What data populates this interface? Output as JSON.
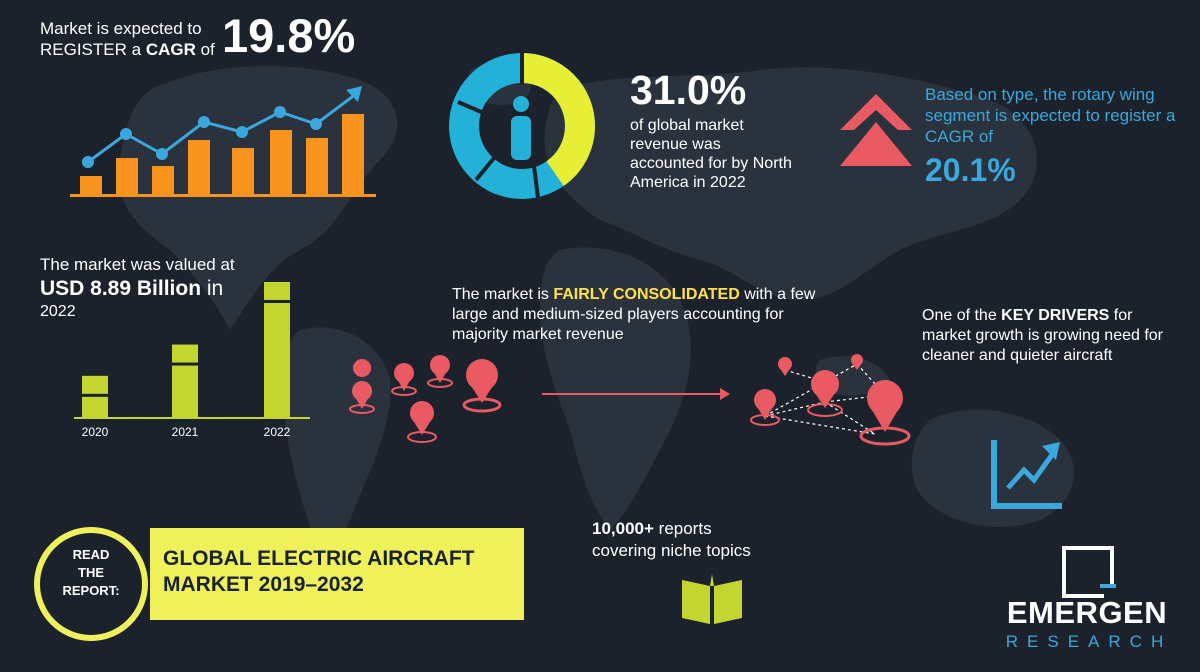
{
  "cagr": {
    "lead_line1": "Market is expected to",
    "lead_line2_prefix": "REGISTER a ",
    "lead_line2_bold": "CAGR",
    "lead_line2_suffix": " of",
    "value": "19.8%"
  },
  "market_share": {
    "value": "31.0%",
    "description": "of global market revenue was accounted for by North America in 2022",
    "donut_share_fraction": 0.31
  },
  "rotary_wing": {
    "description": "Based on type, the rotary wing segment is expected to register a CAGR of",
    "value": "20.1%"
  },
  "valuation": {
    "lead": "The market was valued at",
    "amount_bold": "USD 8.89 Billion",
    "amount_suffix": " in",
    "year": "2022"
  },
  "chart_data": {
    "type": "bar",
    "categories": [
      "2020",
      "2021",
      "2022"
    ],
    "values": [
      0.31,
      0.54,
      1.0
    ],
    "xlabel": "",
    "ylabel": "",
    "grid": false
  },
  "consolidation": {
    "prefix": "The market is ",
    "highlight": "FAIRLY CONSOLIDATED",
    "suffix": " with a few large and medium-sized players accounting for majority market revenue"
  },
  "drivers": {
    "prefix": "One of the ",
    "highlight": "KEY DRIVERS",
    "suffix": " for market growth is growing need for cleaner and quieter aircraft"
  },
  "reports": {
    "count": "10,000+",
    "line1_suffix": " reports",
    "line2": "covering niche topics"
  },
  "banner": {
    "read_label_lines": [
      "READ",
      "THE",
      "REPORT:"
    ],
    "title_line1": "GLOBAL ELECTRIC AIRCRAFT",
    "title_line2": "MARKET 2019–2032"
  },
  "logo": {
    "name": "EMERGEN",
    "sub": "RESEARCH"
  },
  "icons": {
    "growth_chart": "growth-bar-chart-icon",
    "donut": "donut-person-icon",
    "rotary_arrow": "double-chevron-up-icon",
    "pins_left": "location-pin-icon",
    "pins_right": "network-pins-icon",
    "trend": "trend-up-icon",
    "book": "open-book-icon"
  },
  "colors": {
    "background": "#1b222c",
    "accent_blue": "#3aa8dc",
    "accent_yellow": "#eef15a",
    "accent_orange": "#f7941d",
    "accent_red": "#e95a62",
    "bar_green": "#c3d630",
    "highlight_yellow": "#ffe24a"
  }
}
